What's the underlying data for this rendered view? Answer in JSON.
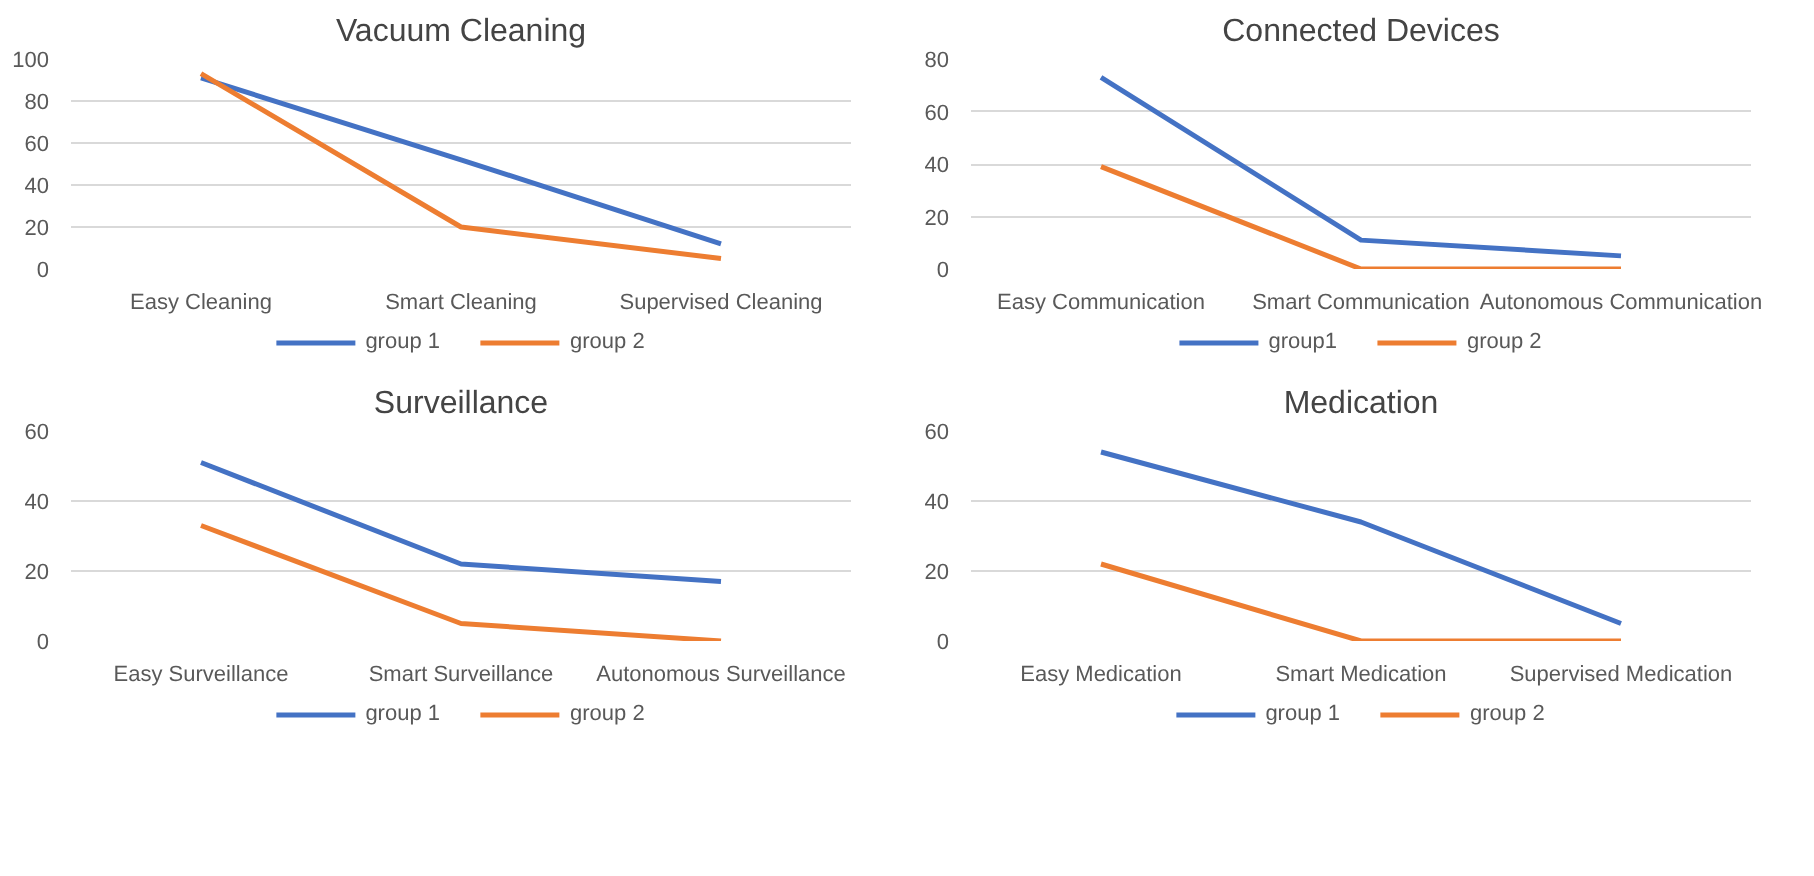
{
  "chart_data": [
    {
      "type": "line",
      "title": "Vacuum Cleaning",
      "categories": [
        "Easy Cleaning",
        "Smart Cleaning",
        "Supervised Cleaning"
      ],
      "ylim": [
        0,
        100
      ],
      "yticks": [
        0,
        20,
        40,
        60,
        80,
        100
      ],
      "grid": "y",
      "legend": "bottom",
      "series": [
        {
          "name": "group 1",
          "color": "#4472c4",
          "values": [
            91,
            52,
            12
          ]
        },
        {
          "name": "group 2",
          "color": "#ed7d31",
          "values": [
            93,
            20,
            5
          ]
        }
      ]
    },
    {
      "type": "line",
      "title": "Connected Devices",
      "categories": [
        "Easy Communication",
        "Smart Communication",
        "Autonomous Communication"
      ],
      "ylim": [
        0,
        80
      ],
      "yticks": [
        0,
        20,
        40,
        60,
        80
      ],
      "grid": "y",
      "legend": "bottom",
      "series": [
        {
          "name": "group1",
          "color": "#4472c4",
          "values": [
            73,
            11,
            5
          ]
        },
        {
          "name": "group 2",
          "color": "#ed7d31",
          "values": [
            39,
            0,
            0
          ]
        }
      ]
    },
    {
      "type": "line",
      "title": "Surveillance",
      "categories": [
        "Easy Surveillance",
        "Smart Surveillance",
        "Autonomous Surveillance"
      ],
      "ylim": [
        0,
        60
      ],
      "yticks": [
        0,
        20,
        40,
        60
      ],
      "grid": "y",
      "legend": "bottom",
      "series": [
        {
          "name": "group 1",
          "color": "#4472c4",
          "values": [
            51,
            22,
            17
          ]
        },
        {
          "name": "group 2",
          "color": "#ed7d31",
          "values": [
            33,
            5,
            0
          ]
        }
      ]
    },
    {
      "type": "line",
      "title": "Medication",
      "categories": [
        "Easy Medication",
        "Smart Medication",
        "Supervised Medication"
      ],
      "ylim": [
        0,
        60
      ],
      "yticks": [
        0,
        20,
        40,
        60
      ],
      "grid": "y",
      "legend": "bottom",
      "series": [
        {
          "name": "group 1",
          "color": "#4472c4",
          "values": [
            54,
            34,
            5
          ]
        },
        {
          "name": "group 2",
          "color": "#ed7d31",
          "values": [
            22,
            0,
            0
          ]
        }
      ]
    }
  ]
}
